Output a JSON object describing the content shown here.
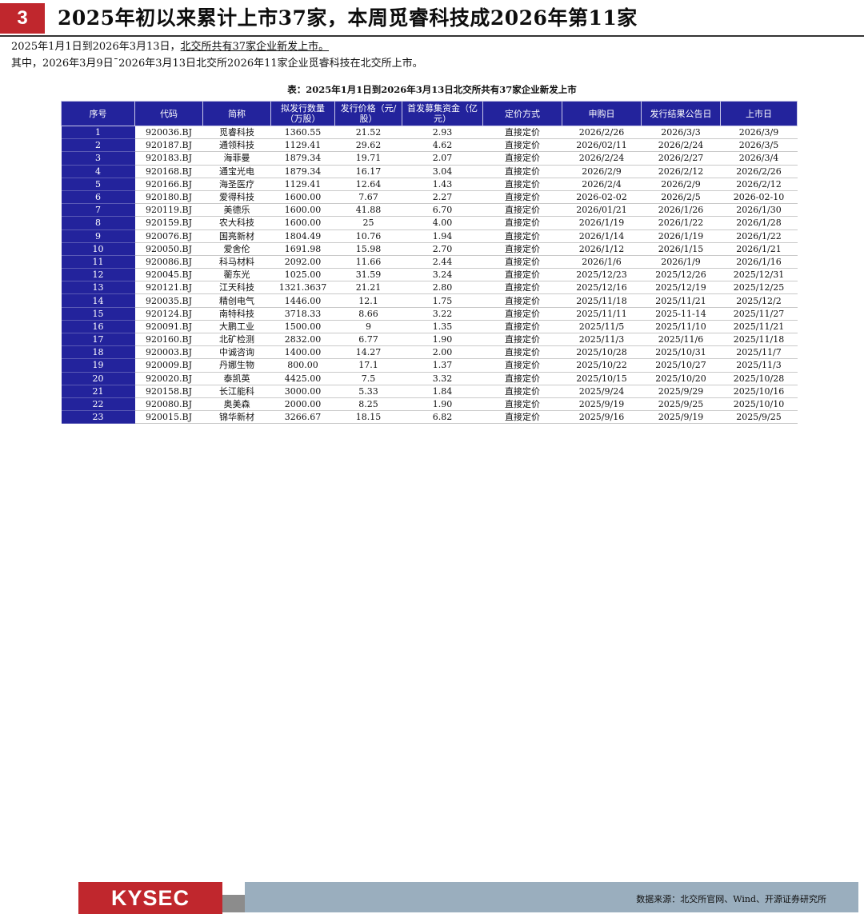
{
  "header": {
    "slide_number": "3",
    "title": "2025年初以来累计上市37家，本周觅睿科技成2026年第11家"
  },
  "summary": {
    "line1": "2025年1月1日到2026年3月13日，北交所共有37家企业新发上市。",
    "line2": "其中，2026年3月9日¯2026年3月13日北交所2026年11家企业觅睿科技在北交所上市。"
  },
  "table": {
    "caption": "表：2025年1月1日到2026年3月13日北交所共有37家企业新发上市",
    "headers": [
      "序号",
      "代码",
      "简称",
      "拟发行数量（万股）",
      "发行价格（元/股）",
      "首发募集资金（亿元）",
      "定价方式",
      "申购日",
      "发行结果公告日",
      "上市日"
    ],
    "rows": [
      [
        "1",
        "920036.BJ",
        "觅睿科技",
        "1360.55",
        "21.52",
        "2.93",
        "直接定价",
        "2026/2/26",
        "2026/3/3",
        "2026/3/9"
      ],
      [
        "2",
        "920187.BJ",
        "通领科技",
        "1129.41",
        "29.62",
        "4.62",
        "直接定价",
        "2026/02/11",
        "2026/2/24",
        "2026/3/5"
      ],
      [
        "3",
        "920183.BJ",
        "海菲曼",
        "1879.34",
        "19.71",
        "2.07",
        "直接定价",
        "2026/2/24",
        "2026/2/27",
        "2026/3/4"
      ],
      [
        "4",
        "920168.BJ",
        "通宝光电",
        "1879.34",
        "16.17",
        "3.04",
        "直接定价",
        "2026/2/9",
        "2026/2/12",
        "2026/2/26"
      ],
      [
        "5",
        "920166.BJ",
        "海圣医疗",
        "1129.41",
        "12.64",
        "1.43",
        "直接定价",
        "2026/2/4",
        "2026/2/9",
        "2026/2/12"
      ],
      [
        "6",
        "920180.BJ",
        "爱得科技",
        "1600.00",
        "7.67",
        "2.27",
        "直接定价",
        "2026-02-02",
        "2026/2/5",
        "2026-02-10"
      ],
      [
        "7",
        "920119.BJ",
        "美德乐",
        "1600.00",
        "41.88",
        "6.70",
        "直接定价",
        "2026/01/21",
        "2026/1/26",
        "2026/1/30"
      ],
      [
        "8",
        "920159.BJ",
        "农大科技",
        "1600.00",
        "25",
        "4.00",
        "直接定价",
        "2026/1/19",
        "2026/1/22",
        "2026/1/28"
      ],
      [
        "9",
        "920076.BJ",
        "国亮新材",
        "1804.49",
        "10.76",
        "1.94",
        "直接定价",
        "2026/1/14",
        "2026/1/19",
        "2026/1/22"
      ],
      [
        "10",
        "920050.BJ",
        "爱舍伦",
        "1691.98",
        "15.98",
        "2.70",
        "直接定价",
        "2026/1/12",
        "2026/1/15",
        "2026/1/21"
      ],
      [
        "11",
        "920086.BJ",
        "科马材料",
        "2092.00",
        "11.66",
        "2.44",
        "直接定价",
        "2026/1/6",
        "2026/1/9",
        "2026/1/16"
      ],
      [
        "12",
        "920045.BJ",
        "蘅东光",
        "1025.00",
        "31.59",
        "3.24",
        "直接定价",
        "2025/12/23",
        "2025/12/26",
        "2025/12/31"
      ],
      [
        "13",
        "920121.BJ",
        "江天科技",
        "1321.3637",
        "21.21",
        "2.80",
        "直接定价",
        "2025/12/16",
        "2025/12/19",
        "2025/12/25"
      ],
      [
        "14",
        "920035.BJ",
        "精创电气",
        "1446.00",
        "12.1",
        "1.75",
        "直接定价",
        "2025/11/18",
        "2025/11/21",
        "2025/12/2"
      ],
      [
        "15",
        "920124.BJ",
        "南特科技",
        "3718.33",
        "8.66",
        "3.22",
        "直接定价",
        "2025/11/11",
        "2025-11-14",
        "2025/11/27"
      ],
      [
        "16",
        "920091.BJ",
        "大鹏工业",
        "1500.00",
        "9",
        "1.35",
        "直接定价",
        "2025/11/5",
        "2025/11/10",
        "2025/11/21"
      ],
      [
        "17",
        "920160.BJ",
        "北矿检测",
        "2832.00",
        "6.77",
        "1.90",
        "直接定价",
        "2025/11/3",
        "2025/11/6",
        "2025/11/18"
      ],
      [
        "18",
        "920003.BJ",
        "中诚咨询",
        "1400.00",
        "14.27",
        "2.00",
        "直接定价",
        "2025/10/28",
        "2025/10/31",
        "2025/11/7"
      ],
      [
        "19",
        "920009.BJ",
        "丹娜生物",
        "800.00",
        "17.1",
        "1.37",
        "直接定价",
        "2025/10/22",
        "2025/10/27",
        "2025/11/3"
      ],
      [
        "20",
        "920020.BJ",
        "泰凯英",
        "4425.00",
        "7.5",
        "3.32",
        "直接定价",
        "2025/10/15",
        "2025/10/20",
        "2025/10/28"
      ],
      [
        "21",
        "920158.BJ",
        "长江能科",
        "3000.00",
        "5.33",
        "1.84",
        "直接定价",
        "2025/9/24",
        "2025/9/29",
        "2025/10/16"
      ],
      [
        "22",
        "920080.BJ",
        "奥美森",
        "2000.00",
        "8.25",
        "1.90",
        "直接定价",
        "2025/9/19",
        "2025/9/25",
        "2025/10/10"
      ],
      [
        "23",
        "920015.BJ",
        "锦华新材",
        "3266.67",
        "18.15",
        "6.82",
        "直接定价",
        "2025/9/16",
        "2025/9/19",
        "2025/9/25"
      ]
    ]
  },
  "footer": {
    "logo": "KYSEC",
    "source": "数据来源：北交所官网、Wind、开源证券研究所"
  },
  "colors": {
    "brand_red": "#c0272d",
    "header_blue": "#23239c",
    "source_bar": "#9aaebe"
  }
}
